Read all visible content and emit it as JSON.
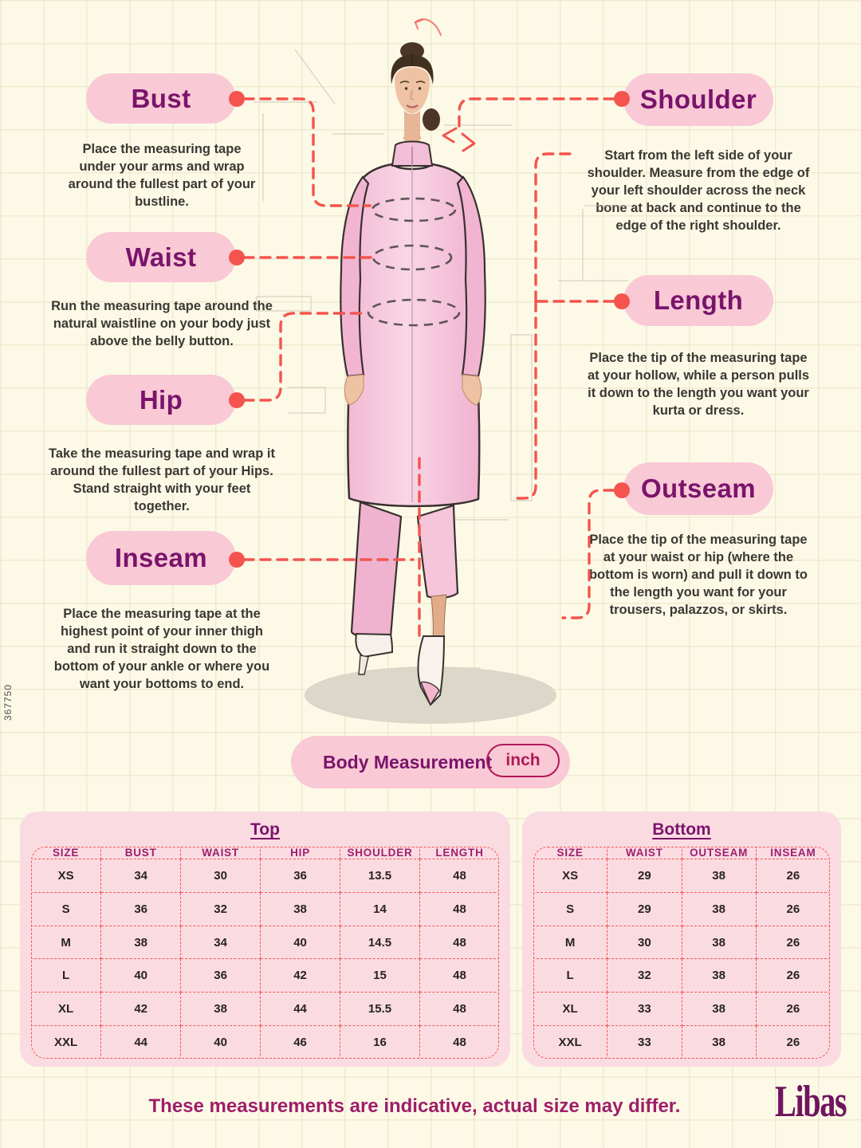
{
  "page": {
    "side_code": "367750",
    "footer_note": "These measurements are indicative, actual size may differ.",
    "brand": "Libas"
  },
  "colors": {
    "background_cream": "#fcf9e7",
    "pill_pink": "#f9c9d5",
    "heading_purple": "#7a146b",
    "dash_red": "#f4544d",
    "panel_pink": "#fbdbe2",
    "unit_chip_crimson": "#b01857",
    "footer_purple": "#9e1e6a"
  },
  "icons": {
    "connector_dot": "red-dot-icon",
    "shoulder_arrows": "arrow-icon"
  },
  "measurements": {
    "left": [
      {
        "label": "Bust",
        "description": "Place the measuring tape under your arms and wrap around the fullest part of your bustline."
      },
      {
        "label": "Waist",
        "description": "Run the measuring tape around the natural waistline on your body just above the belly button."
      },
      {
        "label": "Hip",
        "description": "Take the measuring tape and wrap it around the fullest part of your Hips. Stand straight with your feet together."
      },
      {
        "label": "Inseam",
        "description": "Place the measuring tape at the highest point of your inner thigh and run it straight down to the bottom of your ankle or where you want your bottoms to end."
      }
    ],
    "right": [
      {
        "label": "Shoulder",
        "description": "Start from the left side of your shoulder. Measure from the edge of your left shoulder across the neck bone at back and continue to the edge of the right shoulder."
      },
      {
        "label": "Length",
        "description": "Place the tip of the measuring tape at your hollow, while a person pulls it down to the length you want your kurta or dress."
      },
      {
        "label": "Outseam",
        "description": "Place the tip of the measuring tape at your waist or hip (where the bottom is worn) and pull it down to the length you want for your trousers, palazzos, or skirts."
      }
    ]
  },
  "unit_badge": {
    "label": "Body Measurement",
    "unit": "inch"
  },
  "tables": {
    "top": {
      "title": "Top",
      "headers": [
        "SIZE",
        "BUST",
        "WAIST",
        "HIP",
        "SHOULDER",
        "LENGTH"
      ],
      "rows": [
        [
          "XS",
          "34",
          "30",
          "36",
          "13.5",
          "48"
        ],
        [
          "S",
          "36",
          "32",
          "38",
          "14",
          "48"
        ],
        [
          "M",
          "38",
          "34",
          "40",
          "14.5",
          "48"
        ],
        [
          "L",
          "40",
          "36",
          "42",
          "15",
          "48"
        ],
        [
          "XL",
          "42",
          "38",
          "44",
          "15.5",
          "48"
        ],
        [
          "XXL",
          "44",
          "40",
          "46",
          "16",
          "48"
        ]
      ]
    },
    "bottom": {
      "title": "Bottom",
      "headers": [
        "SIZE",
        "WAIST",
        "OUTSEAM",
        "INSEAM"
      ],
      "rows": [
        [
          "XS",
          "29",
          "38",
          "26"
        ],
        [
          "S",
          "29",
          "38",
          "26"
        ],
        [
          "M",
          "30",
          "38",
          "26"
        ],
        [
          "L",
          "32",
          "38",
          "26"
        ],
        [
          "XL",
          "33",
          "38",
          "26"
        ],
        [
          "XXL",
          "33",
          "38",
          "26"
        ]
      ]
    }
  }
}
